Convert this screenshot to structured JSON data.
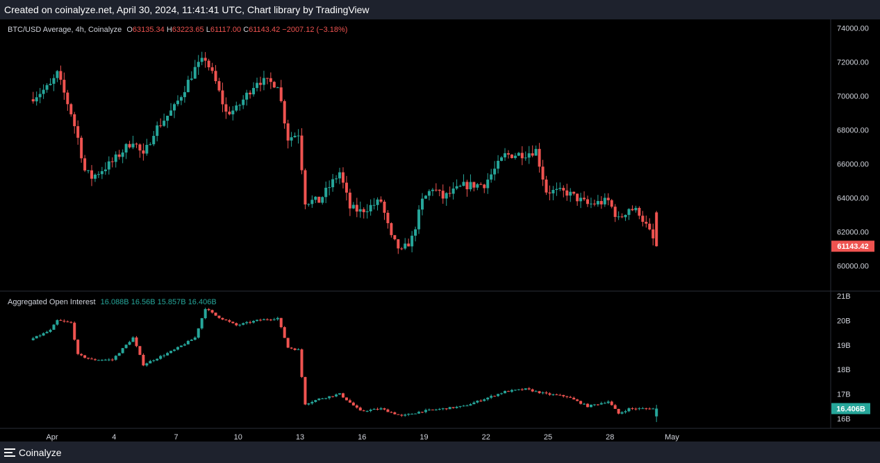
{
  "header": {
    "credit": "Created on coinalyze.net, April 30, 2024, 11:41:41 UTC, Chart library by TradingView"
  },
  "footer": {
    "brand": "Coinalyze"
  },
  "colors": {
    "up": "#26a69a",
    "down": "#ef5350",
    "background": "#000000",
    "panel_border": "#2a2e39"
  },
  "price_legend": {
    "symbol": "BTC/USD Average, 4h, Coinalyze",
    "o_label": "O",
    "o": "63135.34",
    "h_label": "H",
    "h": "63223.65",
    "l_label": "L",
    "l": "61117.00",
    "c_label": "C",
    "c": "61143.42",
    "change": "−2007.12 (−3.18%)"
  },
  "oi_legend": {
    "label": "Aggregated Open Interest",
    "o": "16.088B",
    "h": "16.56B",
    "l": "15.857B",
    "c": "16.406B"
  },
  "price_axis": {
    "ticks": [
      "74000.00",
      "72000.00",
      "70000.00",
      "68000.00",
      "66000.00",
      "64000.00",
      "62000.00",
      "60000.00"
    ],
    "last": "61143.42"
  },
  "oi_axis": {
    "ticks": [
      "21B",
      "20B",
      "19B",
      "18B",
      "17B",
      "16B"
    ],
    "last": "16.406B"
  },
  "time_axis": {
    "labels": [
      "Apr",
      "4",
      "7",
      "10",
      "13",
      "16",
      "19",
      "22",
      "25",
      "28",
      "May"
    ]
  },
  "chart_data": [
    {
      "type": "candlestick",
      "title": "BTC/USD Average, 4h, Coinalyze",
      "x_anchors": [
        {
          "day": "Apr",
          "pos": "Apr 1"
        },
        {
          "day": "May",
          "pos": "May 1"
        }
      ],
      "ylim": [
        58500,
        74500
      ],
      "keypoints_close": [
        [
          "Mar 31",
          69800
        ],
        [
          "Apr 1",
          70600
        ],
        [
          "Apr 1 08h",
          71300
        ],
        [
          "Apr 2",
          69000
        ],
        [
          "Apr 2 08h",
          67500
        ],
        [
          "Apr 2 16h",
          65600
        ],
        [
          "Apr 3",
          65200
        ],
        [
          "Apr 4",
          66100
        ],
        [
          "Apr 5",
          67400
        ],
        [
          "Apr 5 12h",
          66400
        ],
        [
          "Apr 6",
          67900
        ],
        [
          "Apr 7",
          69300
        ],
        [
          "Apr 8",
          71600
        ],
        [
          "Apr 8 12h",
          72200
        ],
        [
          "Apr 9",
          70800
        ],
        [
          "Apr 9 12h",
          69000
        ],
        [
          "Apr 10",
          69200
        ],
        [
          "Apr 11",
          70900
        ],
        [
          "Apr 12",
          70700
        ],
        [
          "Apr 12 12h",
          67500
        ],
        [
          "Apr 13",
          67800
        ],
        [
          "Apr 13 08h",
          63800
        ],
        [
          "Apr 14",
          63800
        ],
        [
          "Apr 15",
          65500
        ],
        [
          "Apr 15 12h",
          63400
        ],
        [
          "Apr 16",
          63200
        ],
        [
          "Apr 17",
          63800
        ],
        [
          "Apr 17 12h",
          61600
        ],
        [
          "Apr 18",
          60800
        ],
        [
          "Apr 18 12h",
          61600
        ],
        [
          "Apr 19",
          63800
        ],
        [
          "Apr 19 12h",
          64600
        ],
        [
          "Apr 20",
          64000
        ],
        [
          "Apr 21",
          64700
        ],
        [
          "Apr 22",
          64800
        ],
        [
          "Apr 23",
          66500
        ],
        [
          "Apr 24",
          66600
        ],
        [
          "Apr 24 12h",
          66800
        ],
        [
          "Apr 25",
          64400
        ],
        [
          "Apr 26",
          64300
        ],
        [
          "Apr 27",
          63600
        ],
        [
          "Apr 28",
          63800
        ],
        [
          "Apr 28 12h",
          62700
        ],
        [
          "Apr 29",
          63400
        ],
        [
          "Apr 29 12h",
          63135.34
        ],
        [
          "Apr 30 08h",
          61143.42
        ]
      ],
      "last_candle": {
        "open": 63135.34,
        "high": 63223.65,
        "low": 61117.0,
        "close": 61143.42
      }
    },
    {
      "type": "candlestick",
      "title": "Aggregated Open Interest",
      "ylim": [
        15.6,
        21.2
      ],
      "unit": "B",
      "keypoints_close": [
        [
          "Mar 31",
          19.2
        ],
        [
          "Apr 1",
          19.6
        ],
        [
          "Apr 1 08h",
          20.0
        ],
        [
          "Apr 2",
          19.9
        ],
        [
          "Apr 2 08h",
          18.6
        ],
        [
          "Apr 3",
          18.4
        ],
        [
          "Apr 4",
          18.4
        ],
        [
          "Apr 5",
          19.3
        ],
        [
          "Apr 5 12h",
          18.2
        ],
        [
          "Apr 6",
          18.4
        ],
        [
          "Apr 7",
          18.8
        ],
        [
          "Apr 8",
          19.3
        ],
        [
          "Apr 8 12h",
          20.5
        ],
        [
          "Apr 9",
          20.2
        ],
        [
          "Apr 10",
          19.8
        ],
        [
          "Apr 11",
          20.0
        ],
        [
          "Apr 12",
          20.1
        ],
        [
          "Apr 12 12h",
          18.9
        ],
        [
          "Apr 13",
          18.8
        ],
        [
          "Apr 13 08h",
          16.6
        ],
        [
          "Apr 14",
          16.8
        ],
        [
          "Apr 15",
          17.0
        ],
        [
          "Apr 16",
          16.3
        ],
        [
          "Apr 17",
          16.4
        ],
        [
          "Apr 18",
          16.1
        ],
        [
          "Apr 19",
          16.3
        ],
        [
          "Apr 20",
          16.4
        ],
        [
          "Apr 21",
          16.5
        ],
        [
          "Apr 22",
          16.8
        ],
        [
          "Apr 23",
          17.1
        ],
        [
          "Apr 24",
          17.2
        ],
        [
          "Apr 25",
          17.0
        ],
        [
          "Apr 26",
          16.9
        ],
        [
          "Apr 27",
          16.5
        ],
        [
          "Apr 28",
          16.7
        ],
        [
          "Apr 28 12h",
          16.2
        ],
        [
          "Apr 29",
          16.4
        ],
        [
          "Apr 30 08h",
          16.406
        ]
      ],
      "last_candle": {
        "open": 16.088,
        "high": 16.56,
        "low": 15.857,
        "close": 16.406
      }
    }
  ]
}
